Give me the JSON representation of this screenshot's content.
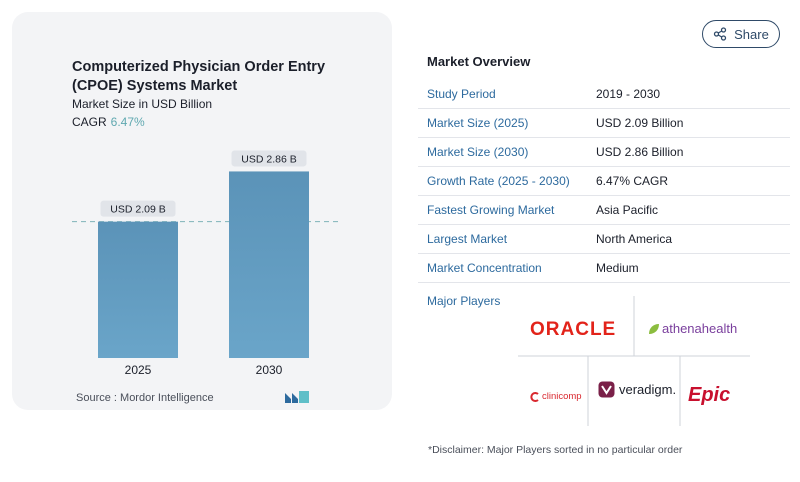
{
  "header": {
    "share_label": "Share",
    "share_icon": "share-icon"
  },
  "chart_data": {
    "type": "bar",
    "title": "Computerized Physician Order Entry (CPOE) Systems Market",
    "subtitle": "Market Size in USD Billion",
    "cagr_label": "CAGR",
    "cagr_value": "6.47%",
    "categories": [
      "2025",
      "2030"
    ],
    "values": [
      2.09,
      2.86
    ],
    "data_labels": [
      "USD 2.09 B",
      "USD 2.86 B"
    ],
    "xlabel": "",
    "ylabel": "",
    "ylim": [
      0,
      3.2
    ],
    "reference_line_value": 2.09,
    "grid": false,
    "bar_color": "#5b93b8",
    "bar_color_light": "#6aa5c9",
    "source_label": "Source :",
    "source_value": "Mordor Intelligence"
  },
  "overview": {
    "title": "Market Overview",
    "rows": [
      {
        "label": "Study Period",
        "value": "2019 - 2030"
      },
      {
        "label": "Market Size (2025)",
        "value": "USD 2.09 Billion"
      },
      {
        "label": "Market Size (2030)",
        "value": "USD 2.86 Billion"
      },
      {
        "label": "Growth Rate (2025 - 2030)",
        "value": "6.47% CAGR"
      },
      {
        "label": "Fastest Growing Market",
        "value": "Asia Pacific"
      },
      {
        "label": "Largest Market",
        "value": "North America"
      },
      {
        "label": "Market Concentration",
        "value": "Medium"
      }
    ]
  },
  "players": {
    "title": "Major Players",
    "logos": [
      "ORACLE",
      "athenahealth",
      "clinicomp",
      "veradigm.",
      "Epic"
    ],
    "logo_colors": {
      "oracle": "#e2231a",
      "athena": "#7a3f9d",
      "clinicomp": "#d9282f",
      "veradigm": "#7a2048",
      "epic": "#c8102e"
    }
  },
  "disclaimer": "*Disclaimer: Major Players sorted in no particular order"
}
